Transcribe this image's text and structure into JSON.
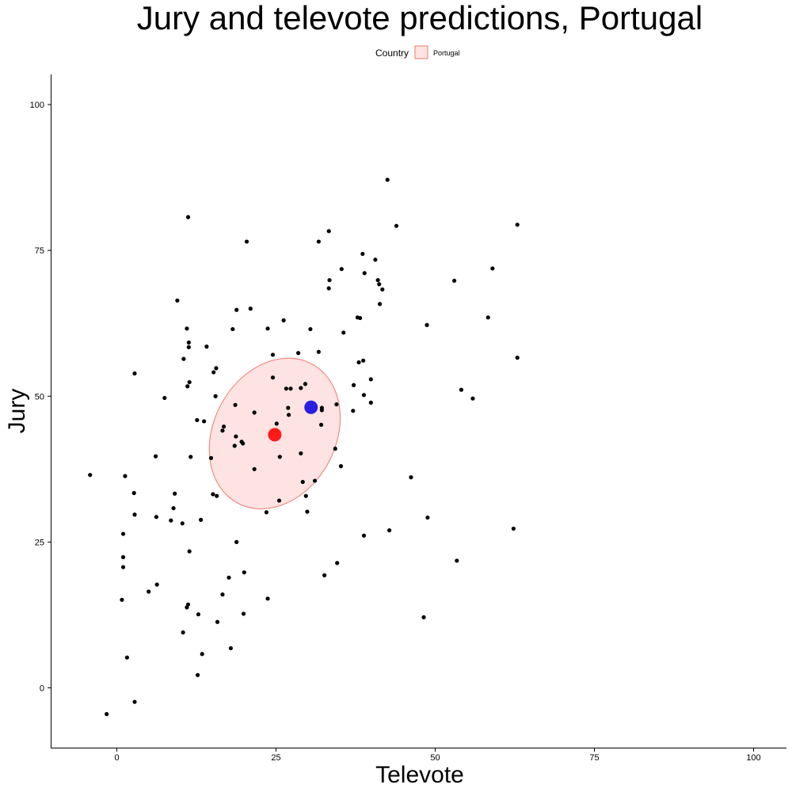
{
  "chart_data": {
    "type": "scatter",
    "title": "Jury and televote predictions, Portugal",
    "xlabel": "Televote",
    "ylabel": "Jury",
    "xlim": [
      -10.5,
      105
    ],
    "ylim": [
      -10.5,
      105
    ],
    "x_ticks": [
      0,
      25,
      50,
      75,
      100
    ],
    "y_ticks": [
      0,
      25,
      50,
      75,
      100
    ],
    "grid": false,
    "legend": {
      "title": "Country",
      "placement": "top",
      "entries": [
        {
          "label": "Portugal",
          "fill": "#fde3e1",
          "stroke": "#ef7b6f"
        }
      ]
    },
    "ellipse": {
      "center": [
        24.8,
        43.6
      ],
      "width_televote": 20,
      "height_jury": 26,
      "fill": "#fde3e1",
      "stroke": "#ef7b6f"
    },
    "highlight_points": [
      {
        "x": 24.8,
        "y": 43.4,
        "color": "#ff1a1a"
      },
      {
        "x": 30.5,
        "y": 48.1,
        "color": "#2a1ee0"
      }
    ],
    "point_color": "#000000",
    "points": [
      [
        42.5,
        87.1
      ],
      [
        11.2,
        80.7
      ],
      [
        62.9,
        79.4
      ],
      [
        43.9,
        79.2
      ],
      [
        33.3,
        78.3
      ],
      [
        20.4,
        76.5
      ],
      [
        31.7,
        76.5
      ],
      [
        38.6,
        74.4
      ],
      [
        40.6,
        73.4
      ],
      [
        35.3,
        71.8
      ],
      [
        59.0,
        71.9
      ],
      [
        38.9,
        71.1
      ],
      [
        33.4,
        69.9
      ],
      [
        41.0,
        69.9
      ],
      [
        53.0,
        69.8
      ],
      [
        41.2,
        69.2
      ],
      [
        33.3,
        68.5
      ],
      [
        41.7,
        68.3
      ],
      [
        9.5,
        66.4
      ],
      [
        41.3,
        65.8
      ],
      [
        21.0,
        65.0
      ],
      [
        18.8,
        64.8
      ],
      [
        37.8,
        63.5
      ],
      [
        38.2,
        63.4
      ],
      [
        58.3,
        63.5
      ],
      [
        26.2,
        63.0
      ],
      [
        48.7,
        62.2
      ],
      [
        11.0,
        61.6
      ],
      [
        18.2,
        61.5
      ],
      [
        23.7,
        61.6
      ],
      [
        30.4,
        61.5
      ],
      [
        35.6,
        60.9
      ],
      [
        11.3,
        59.2
      ],
      [
        11.3,
        58.4
      ],
      [
        14.1,
        58.5
      ],
      [
        28.5,
        57.4
      ],
      [
        31.7,
        57.6
      ],
      [
        24.5,
        57.1
      ],
      [
        10.5,
        56.4
      ],
      [
        38.7,
        56.1
      ],
      [
        62.9,
        56.6
      ],
      [
        38.0,
        55.8
      ],
      [
        15.6,
        54.8
      ],
      [
        15.2,
        54.1
      ],
      [
        2.8,
        53.9
      ],
      [
        39.9,
        52.9
      ],
      [
        24.5,
        53.2
      ],
      [
        11.4,
        52.4
      ],
      [
        29.6,
        52.1
      ],
      [
        11.1,
        51.7
      ],
      [
        37.2,
        51.9
      ],
      [
        26.6,
        51.3
      ],
      [
        27.3,
        51.3
      ],
      [
        28.9,
        51.4
      ],
      [
        54.1,
        51.1
      ],
      [
        38.8,
        50.2
      ],
      [
        7.5,
        49.7
      ],
      [
        15.5,
        50.0
      ],
      [
        55.9,
        49.6
      ],
      [
        39.9,
        48.9
      ],
      [
        18.6,
        48.5
      ],
      [
        34.5,
        48.6
      ],
      [
        26.9,
        48.0
      ],
      [
        32.2,
        48.0
      ],
      [
        32.2,
        47.6
      ],
      [
        37.1,
        47.5
      ],
      [
        21.6,
        47.2
      ],
      [
        27.0,
        46.8
      ],
      [
        12.6,
        45.9
      ],
      [
        13.7,
        45.7
      ],
      [
        25.1,
        45.3
      ],
      [
        32.1,
        45.1
      ],
      [
        16.8,
        44.8
      ],
      [
        16.6,
        44.1
      ],
      [
        18.7,
        43.1
      ],
      [
        19.6,
        42.2
      ],
      [
        19.8,
        41.9
      ],
      [
        18.5,
        41.5
      ],
      [
        34.3,
        41.0
      ],
      [
        28.9,
        40.2
      ],
      [
        6.1,
        39.7
      ],
      [
        11.6,
        39.6
      ],
      [
        25.6,
        39.6
      ],
      [
        14.8,
        39.4
      ],
      [
        35.2,
        38.0
      ],
      [
        21.6,
        37.5
      ],
      [
        -4.2,
        36.5
      ],
      [
        1.3,
        36.3
      ],
      [
        46.2,
        36.1
      ],
      [
        31.1,
        35.5
      ],
      [
        29.2,
        35.3
      ],
      [
        9.1,
        33.3
      ],
      [
        2.7,
        33.4
      ],
      [
        15.1,
        33.2
      ],
      [
        15.7,
        32.9
      ],
      [
        29.7,
        32.9
      ],
      [
        25.5,
        32.1
      ],
      [
        8.9,
        30.8
      ],
      [
        23.5,
        30.1
      ],
      [
        29.9,
        30.2
      ],
      [
        2.8,
        29.7
      ],
      [
        6.2,
        29.3
      ],
      [
        48.8,
        29.2
      ],
      [
        13.2,
        28.8
      ],
      [
        8.5,
        28.7
      ],
      [
        10.3,
        28.2
      ],
      [
        62.3,
        27.3
      ],
      [
        42.8,
        27.0
      ],
      [
        1.0,
        26.4
      ],
      [
        38.8,
        26.1
      ],
      [
        18.8,
        25.0
      ],
      [
        11.4,
        23.4
      ],
      [
        1.0,
        22.4
      ],
      [
        53.4,
        21.8
      ],
      [
        34.6,
        21.4
      ],
      [
        1.0,
        20.7
      ],
      [
        20.0,
        19.8
      ],
      [
        32.6,
        19.3
      ],
      [
        17.6,
        18.9
      ],
      [
        6.3,
        17.7
      ],
      [
        5.0,
        16.5
      ],
      [
        16.6,
        16.0
      ],
      [
        23.7,
        15.3
      ],
      [
        0.8,
        15.1
      ],
      [
        11.2,
        14.3
      ],
      [
        11.0,
        13.8
      ],
      [
        12.8,
        12.6
      ],
      [
        19.9,
        12.7
      ],
      [
        48.2,
        12.1
      ],
      [
        15.8,
        11.3
      ],
      [
        10.4,
        9.5
      ],
      [
        17.9,
        6.8
      ],
      [
        13.4,
        5.8
      ],
      [
        1.6,
        5.2
      ],
      [
        12.7,
        2.2
      ],
      [
        2.8,
        -2.4
      ],
      [
        -1.6,
        -4.5
      ]
    ]
  }
}
